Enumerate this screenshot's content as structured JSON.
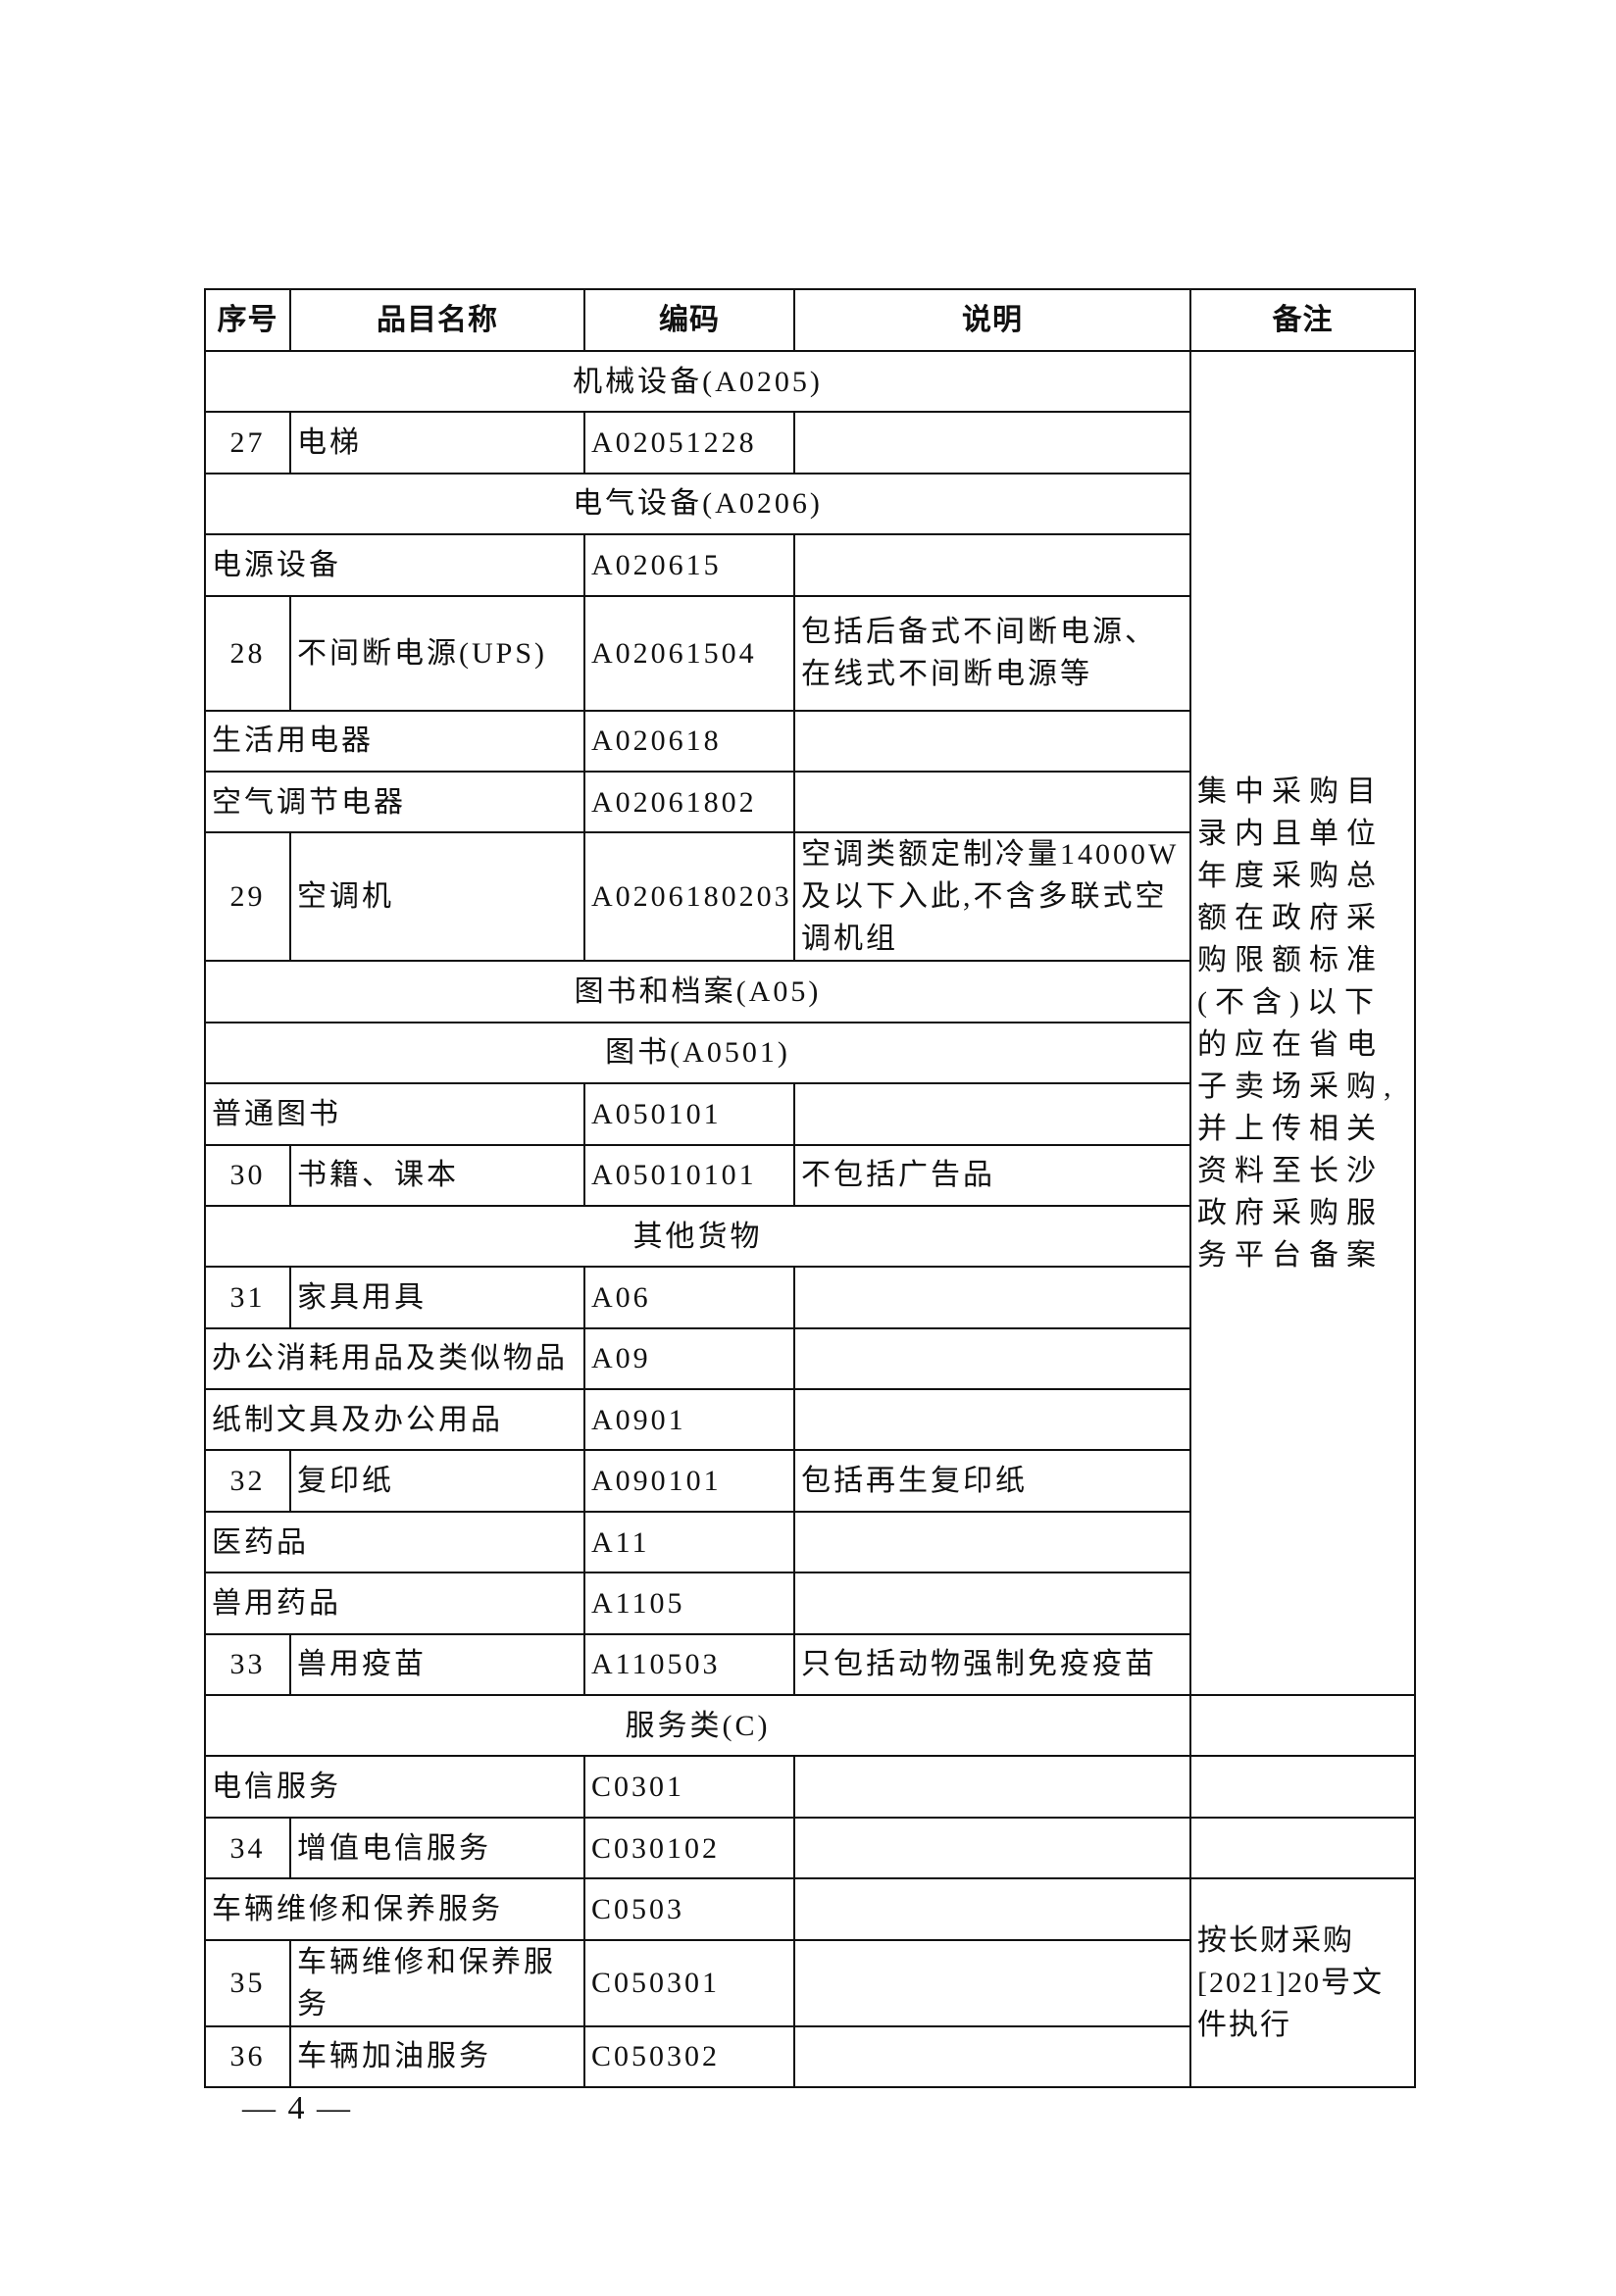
{
  "headers": [
    "序号",
    "品目名称",
    "编码",
    "说明",
    "备注"
  ],
  "rows": [
    {
      "type": "section",
      "name": "机械设备(A0205)"
    },
    {
      "type": "item",
      "num": "27",
      "name": "电梯",
      "code": "A02051228",
      "desc": ""
    },
    {
      "type": "section",
      "name": "电气设备(A0206)"
    },
    {
      "type": "group",
      "name": "电源设备",
      "code": "A020615",
      "desc": ""
    },
    {
      "type": "item",
      "num": "28",
      "name": "不间断电源(UPS)",
      "code": "A02061504",
      "desc": "包括后备式不间断电源、在线式不间断电源等"
    },
    {
      "type": "group",
      "name": "生活用电器",
      "code": "A020618",
      "desc": ""
    },
    {
      "type": "group",
      "name": "空气调节电器",
      "code": "A02061802",
      "desc": ""
    },
    {
      "type": "item",
      "num": "29",
      "name": "空调机",
      "code": "A0206180203",
      "desc": "空调类额定制冷量14000W及以下入此,不含多联式空调机组"
    },
    {
      "type": "section",
      "name": "图书和档案(A05)"
    },
    {
      "type": "section",
      "name": "图书(A0501)"
    },
    {
      "type": "group",
      "name": "普通图书",
      "code": "A050101",
      "desc": ""
    },
    {
      "type": "item",
      "num": "30",
      "name": "书籍、课本",
      "code": "A05010101",
      "desc": "不包括广告品"
    },
    {
      "type": "section",
      "name": "其他货物"
    },
    {
      "type": "item",
      "num": "31",
      "name": "家具用具",
      "code": "A06",
      "desc": ""
    },
    {
      "type": "group",
      "name": "办公消耗用品及类似物品",
      "code": "A09",
      "desc": ""
    },
    {
      "type": "group",
      "name": "纸制文具及办公用品",
      "code": "A0901",
      "desc": ""
    },
    {
      "type": "item",
      "num": "32",
      "name": "复印纸",
      "code": "A090101",
      "desc": "包括再生复印纸"
    },
    {
      "type": "group",
      "name": "医药品",
      "code": "A11",
      "desc": ""
    },
    {
      "type": "group",
      "name": "兽用药品",
      "code": "A1105",
      "desc": ""
    },
    {
      "type": "item",
      "num": "33",
      "name": "兽用疫苗",
      "code": "A110503",
      "desc": "只包括动物强制免疫疫苗"
    },
    {
      "type": "section",
      "name": "服务类(C)"
    },
    {
      "type": "group",
      "name": "电信服务",
      "code": "C0301",
      "desc": ""
    },
    {
      "type": "item",
      "num": "34",
      "name": "增值电信服务",
      "code": "C030102",
      "desc": ""
    },
    {
      "type": "group",
      "name": "车辆维修和保养服务",
      "code": "C0503",
      "desc": ""
    },
    {
      "type": "item",
      "num": "35",
      "name": "车辆维修和保养服务",
      "code": "C050301",
      "desc": ""
    },
    {
      "type": "item",
      "num": "36",
      "name": "车辆加油服务",
      "code": "C050302",
      "desc": ""
    }
  ],
  "remarks": [
    {
      "from": 0,
      "span": 20,
      "text": "集中采购目录内且单位年度采购总额在政府采购限额标准(不含)以下的应在省电子卖场采购,并上传相关资料至长沙政府采购服务平台备案"
    },
    {
      "from": 20,
      "span": 1,
      "text": ""
    },
    {
      "from": 21,
      "span": 1,
      "text": ""
    },
    {
      "from": 22,
      "span": 1,
      "text": ""
    },
    {
      "from": 23,
      "span": 3,
      "text": "按长财采购[2021]20号文件执行"
    }
  ],
  "page_number": "— 4 —"
}
